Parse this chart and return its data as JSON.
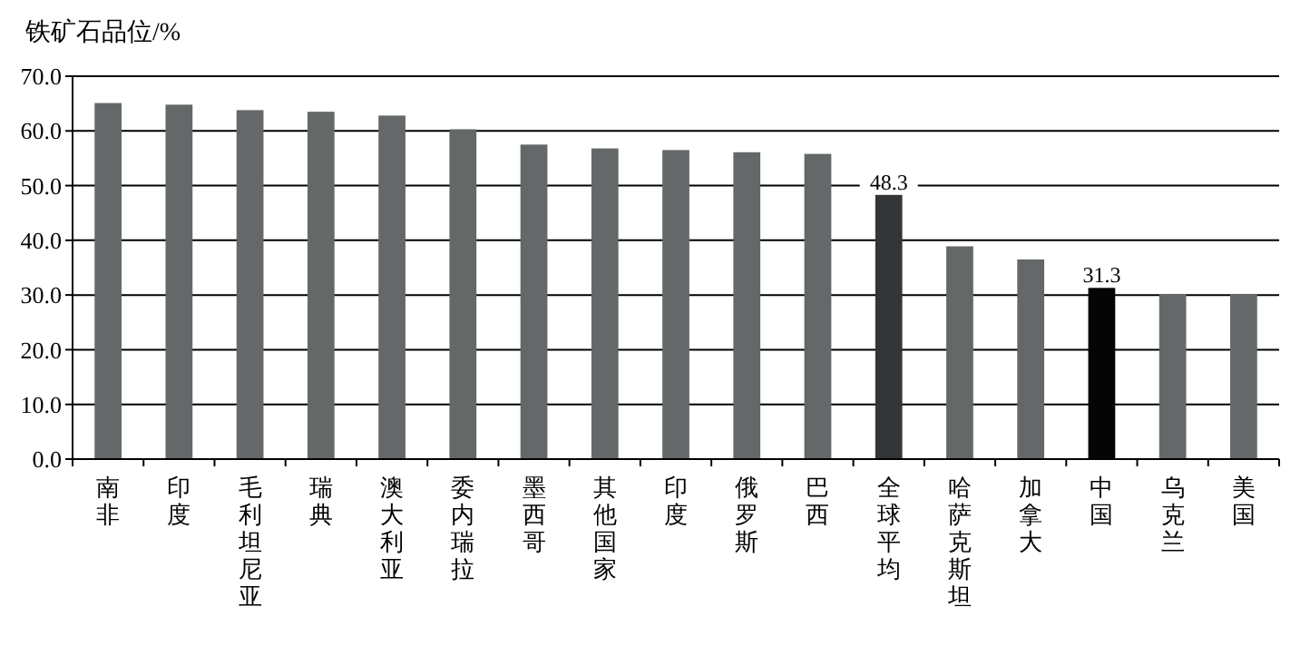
{
  "chart_data": {
    "type": "bar",
    "ylabel": "铁矿石品位/%",
    "categories": [
      "南非",
      "印度",
      "毛利坦尼亚",
      "瑞典",
      "澳大利亚",
      "委内瑞拉",
      "墨西哥",
      "其他国家",
      "印度",
      "俄罗斯",
      "巴西",
      "全球平均",
      "哈萨克斯坦",
      "加拿大",
      "中国",
      "乌克兰",
      "美国"
    ],
    "values": [
      65.1,
      64.8,
      63.8,
      63.5,
      62.8,
      60.3,
      57.5,
      56.8,
      56.5,
      56.1,
      55.8,
      48.3,
      38.9,
      36.5,
      31.3,
      30.2,
      30.2
    ],
    "colors": [
      "#646868",
      "#646868",
      "#646868",
      "#646868",
      "#646868",
      "#646868",
      "#646868",
      "#646868",
      "#646868",
      "#646868",
      "#646868",
      "#333536",
      "#646868",
      "#646868",
      "#050505",
      "#646868",
      "#646868"
    ],
    "value_labels": [
      null,
      null,
      null,
      null,
      null,
      null,
      null,
      null,
      null,
      null,
      null,
      "48.3",
      null,
      null,
      "31.3",
      null,
      null
    ],
    "ylim": [
      0,
      70
    ],
    "yticks": [
      {
        "value": 0,
        "label": "0.0"
      },
      {
        "value": 10,
        "label": "10.0"
      },
      {
        "value": 20,
        "label": "20.0"
      },
      {
        "value": 30,
        "label": "30.0"
      },
      {
        "value": 40,
        "label": "40.0"
      },
      {
        "value": 50,
        "label": "50.0"
      },
      {
        "value": 60,
        "label": "60.0"
      },
      {
        "value": 70,
        "label": "70.0"
      }
    ],
    "grid": "y"
  }
}
